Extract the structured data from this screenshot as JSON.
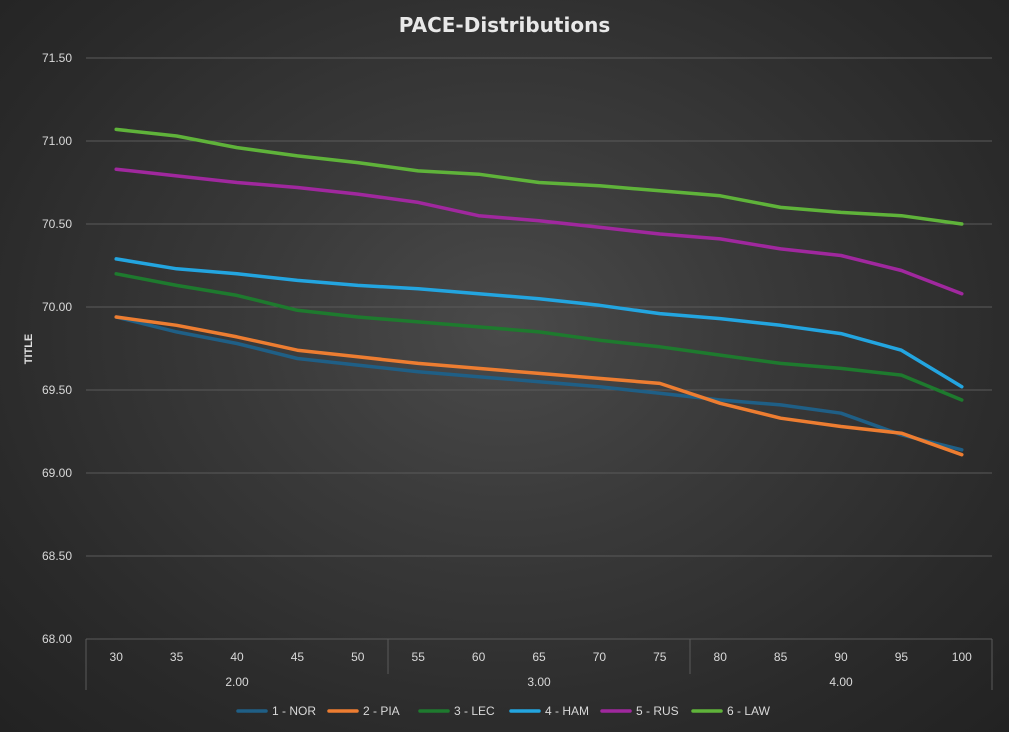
{
  "chart_data": {
    "type": "line",
    "title": "PACE-Distributions",
    "xlabel": "",
    "ylabel": "TITLE",
    "ylim": [
      68.0,
      71.5
    ],
    "y_ticks": [
      "68.00",
      "68.50",
      "69.00",
      "69.50",
      "70.00",
      "70.50",
      "71.00",
      "71.50"
    ],
    "y_tick_values": [
      68.0,
      68.5,
      69.0,
      69.5,
      70.0,
      70.5,
      71.0,
      71.5
    ],
    "categories": [
      "30",
      "35",
      "40",
      "45",
      "50",
      "55",
      "60",
      "65",
      "70",
      "75",
      "80",
      "85",
      "90",
      "95",
      "100"
    ],
    "groups": [
      {
        "label": "2.00",
        "start": 0,
        "end": 4
      },
      {
        "label": "3.00",
        "start": 5,
        "end": 9
      },
      {
        "label": "4.00",
        "start": 10,
        "end": 14
      }
    ],
    "grid": true,
    "legend_position": "bottom",
    "series": [
      {
        "name": "1 - NOR",
        "color": "#1f5f86",
        "values": [
          69.94,
          69.85,
          69.78,
          69.69,
          69.65,
          69.61,
          69.58,
          69.55,
          69.52,
          69.48,
          69.44,
          69.41,
          69.36,
          69.23,
          69.14
        ]
      },
      {
        "name": "2 - PIA",
        "color": "#ed7d31",
        "values": [
          69.94,
          69.89,
          69.82,
          69.74,
          69.7,
          69.66,
          69.63,
          69.6,
          69.57,
          69.54,
          69.42,
          69.33,
          69.28,
          69.24,
          69.11
        ]
      },
      {
        "name": "3 - LEC",
        "color": "#1e7a2e",
        "values": [
          70.2,
          70.13,
          70.07,
          69.98,
          69.94,
          69.91,
          69.88,
          69.85,
          69.8,
          69.76,
          69.71,
          69.66,
          69.63,
          69.59,
          69.44
        ]
      },
      {
        "name": "4 - HAM",
        "color": "#23a5e0",
        "values": [
          70.29,
          70.23,
          70.2,
          70.16,
          70.13,
          70.11,
          70.08,
          70.05,
          70.01,
          69.96,
          69.93,
          69.89,
          69.84,
          69.74,
          69.52
        ]
      },
      {
        "name": "5 - RUS",
        "color": "#a0289e",
        "values": [
          70.83,
          70.79,
          70.75,
          70.72,
          70.68,
          70.63,
          70.55,
          70.52,
          70.48,
          70.44,
          70.41,
          70.35,
          70.31,
          70.22,
          70.08
        ]
      },
      {
        "name": "6 - LAW",
        "color": "#5fb33a",
        "values": [
          71.07,
          71.03,
          70.96,
          70.91,
          70.87,
          70.82,
          70.8,
          70.75,
          70.73,
          70.7,
          70.67,
          70.6,
          70.57,
          70.55,
          70.5
        ]
      }
    ]
  }
}
